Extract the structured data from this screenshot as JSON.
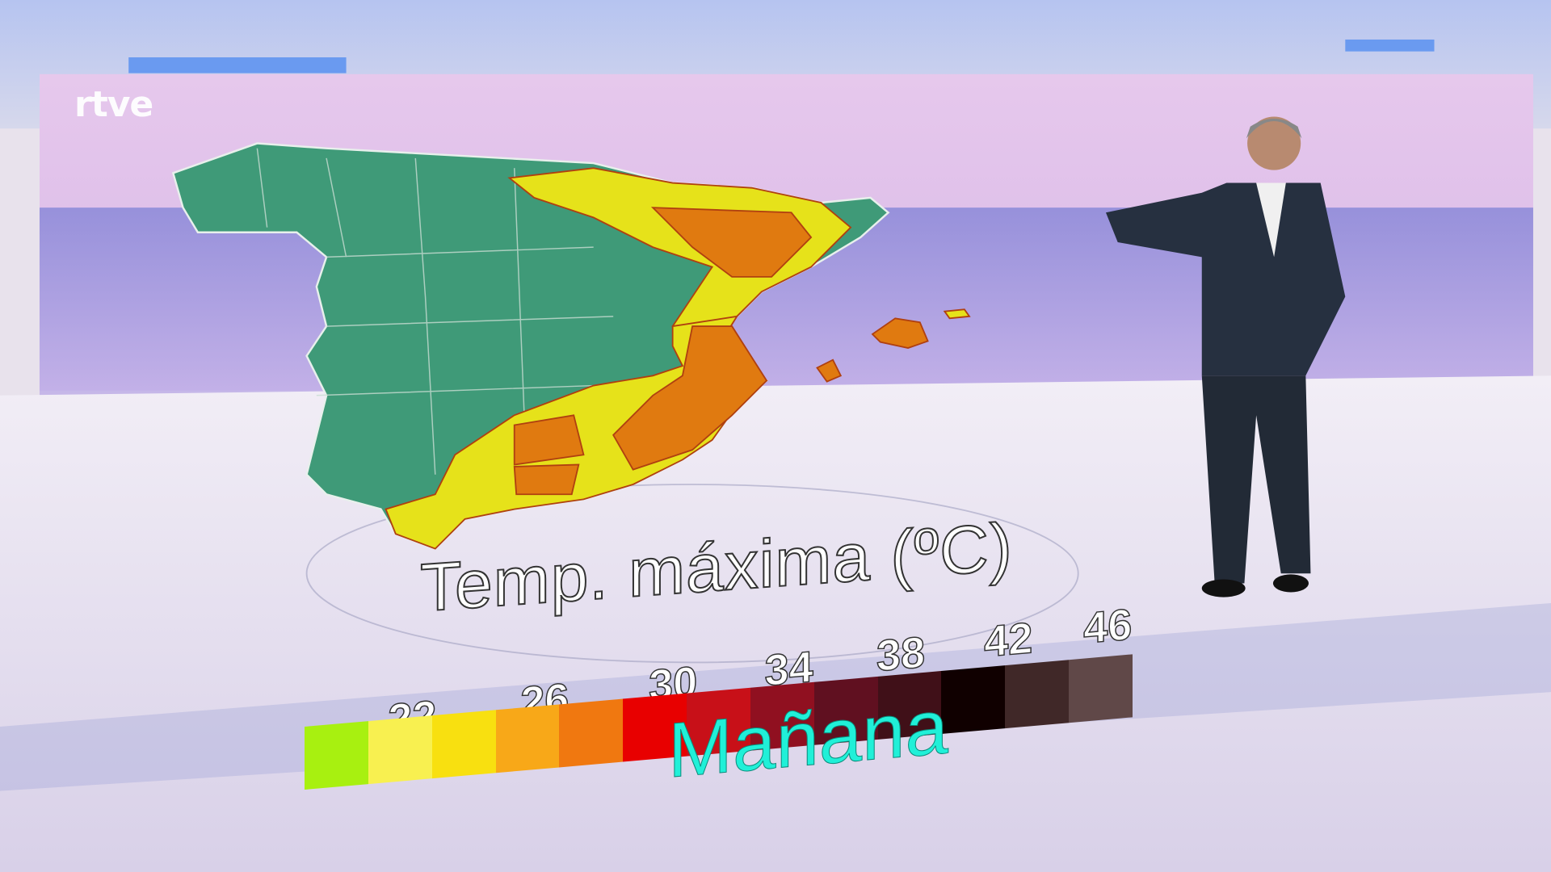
{
  "broadcast": {
    "logo": "rtve"
  },
  "map": {
    "title": "Temp. máxima (ºC)",
    "day": "Mañana",
    "region_colors": {
      "below_22": "#3f9a78",
      "yellow": "#e6e21a",
      "orange": "#e07a10",
      "border": "#b04010"
    }
  },
  "legend": {
    "ticks": [
      "22",
      "26",
      "30",
      "34",
      "38",
      "42",
      "46"
    ],
    "colors": [
      "#a8f010",
      "#f8f050",
      "#f8e010",
      "#f8a818",
      "#f07810",
      "#e80000",
      "#c81018",
      "#901020",
      "#601020",
      "#401018",
      "#100000",
      "#402828",
      "#604848"
    ]
  }
}
